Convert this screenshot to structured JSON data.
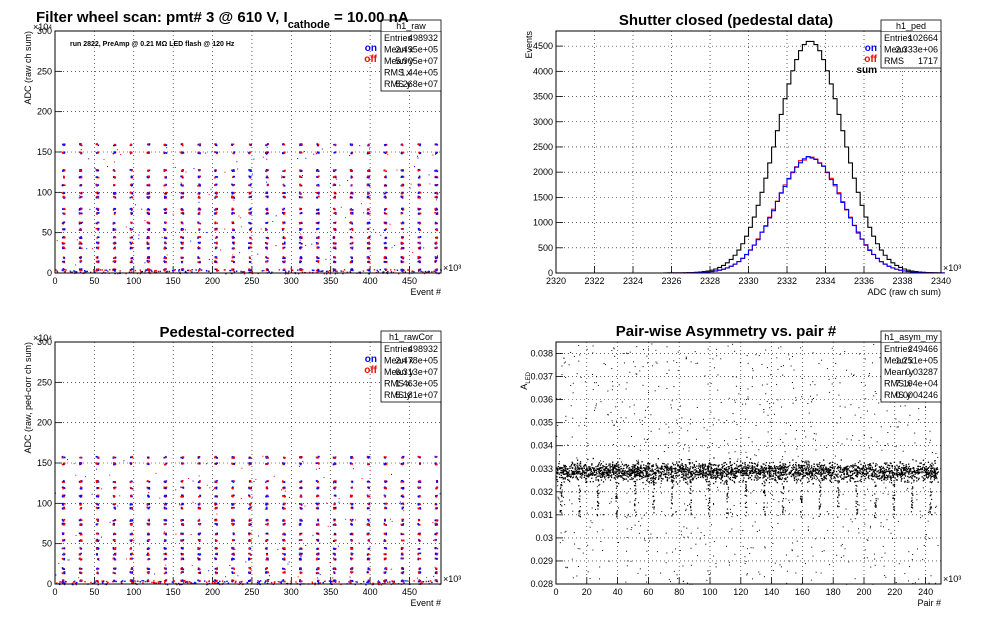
{
  "chart_data": [
    {
      "id": "raw",
      "type": "scatter",
      "title": "Filter wheel scan: pmt#   3 @   610 V, I",
      "title_sub": "cathode",
      "title_suffix": " = 10.00 nA",
      "annotation": "run 2822, PreAmp @ 0.21 MΩ  LED flash @  120 Hz",
      "xlabel": "Event #",
      "ylabel": "ADC (raw ch sum)",
      "xlim": [
        0,
        490
      ],
      "ylim": [
        0,
        300
      ],
      "x_exponent": "×10³",
      "y_exponent": "×10⁴",
      "xticks": [
        0,
        50,
        100,
        150,
        200,
        250,
        300,
        350,
        400,
        450
      ],
      "yticks": [
        0,
        50,
        100,
        150,
        200,
        250,
        300
      ],
      "grid": true,
      "legend": {
        "position": "top-right",
        "entries": [
          {
            "name": "on",
            "color": "#0000ff"
          },
          {
            "name": "off",
            "color": "#ff0000"
          }
        ]
      },
      "stats": {
        "name": "h1_raw",
        "rows": [
          [
            "Entries",
            "498932"
          ],
          [
            "Mean x",
            "2.495e+05"
          ],
          [
            "Mean y",
            "5.905e+07"
          ],
          [
            "RMS x",
            "1.44e+05"
          ],
          [
            "RMS y",
            "5.268e+07"
          ]
        ]
      },
      "levels": [
        160,
        150,
        128,
        120,
        110,
        100,
        95,
        80,
        75,
        63,
        55,
        45,
        38,
        32,
        20,
        15,
        5
      ],
      "block_period": 21.5,
      "block_offset": 10
    },
    {
      "id": "ped",
      "type": "line",
      "title": "Shutter closed (pedestal data)",
      "xlabel": "ADC (raw ch sum)",
      "ylabel": "Events",
      "xlim": [
        2320,
        2340
      ],
      "ylim": [
        0,
        4800
      ],
      "x_exponent": "×10³",
      "xticks": [
        2320,
        2322,
        2324,
        2326,
        2328,
        2330,
        2332,
        2334,
        2336,
        2338,
        2340
      ],
      "yticks": [
        0,
        500,
        1000,
        1500,
        2000,
        2500,
        3000,
        3500,
        4000,
        4500
      ],
      "grid": true,
      "legend": {
        "position": "top-right",
        "entries": [
          {
            "name": "on",
            "color": "#0000ff"
          },
          {
            "name": "off",
            "color": "#ff0000"
          },
          {
            "name": "sum",
            "color": "#000000"
          }
        ]
      },
      "stats": {
        "name": "h1_ped",
        "rows": [
          [
            "Entries",
            "102664"
          ],
          [
            "Mean",
            "2.333e+06"
          ],
          [
            "RMS",
            "1717"
          ]
        ]
      },
      "series": [
        {
          "name": "sum",
          "color": "#000000",
          "peak": 4600,
          "mean": 2333.2,
          "sigma": 1.72
        },
        {
          "name": "on",
          "color": "#0000ff",
          "peak": 2300,
          "mean": 2333.2,
          "sigma": 1.72
        },
        {
          "name": "off",
          "color": "#ff0000",
          "peak": 2300,
          "mean": 2333.2,
          "sigma": 1.72
        }
      ]
    },
    {
      "id": "rawcor",
      "type": "scatter",
      "title": "Pedestal-corrected",
      "xlabel": "Event #",
      "ylabel": "ADC (raw, ped-corr ch sum)",
      "xlim": [
        0,
        490
      ],
      "ylim": [
        0,
        300
      ],
      "x_exponent": "×10³",
      "y_exponent": "×10⁴",
      "xticks": [
        0,
        50,
        100,
        150,
        200,
        250,
        300,
        350,
        400,
        450
      ],
      "yticks": [
        0,
        50,
        100,
        150,
        200,
        250,
        300
      ],
      "grid": true,
      "legend": {
        "position": "top-right",
        "entries": [
          {
            "name": "on",
            "color": "#0000ff"
          },
          {
            "name": "off",
            "color": "#ff0000"
          }
        ]
      },
      "stats": {
        "name": "h1_rawCor",
        "rows": [
          [
            "Entries",
            "498932"
          ],
          [
            "Mean x",
            "2.478e+05"
          ],
          [
            "Mean y",
            "6.313e+07"
          ],
          [
            "RMS x",
            "1.463e+05"
          ],
          [
            "RMS y",
            "5.181e+07"
          ]
        ]
      },
      "levels": [
        158,
        150,
        128,
        120,
        110,
        100,
        95,
        80,
        75,
        63,
        55,
        45,
        38,
        32,
        20,
        15,
        5
      ],
      "block_period": 21.5,
      "block_offset": 10
    },
    {
      "id": "asym",
      "type": "scatter",
      "title": "Pair-wise Asymmetry vs. pair #",
      "xlabel": "Pair #",
      "ylabel": "A_LED",
      "xlim": [
        0,
        250
      ],
      "ylim": [
        0.028,
        0.0385
      ],
      "x_exponent": "×10³",
      "xticks": [
        0,
        20,
        40,
        60,
        80,
        100,
        120,
        140,
        160,
        180,
        200,
        220,
        240
      ],
      "yticks": [
        0.028,
        0.029,
        0.03,
        0.031,
        0.032,
        0.033,
        0.034,
        0.035,
        0.036,
        0.037,
        0.038
      ],
      "ytick_labels": [
        "0.028",
        "0.029",
        "0.03",
        "0.031",
        "0.032",
        "0.033",
        "0.034",
        "0.035",
        "0.036",
        "0.037",
        "0.038"
      ],
      "grid": true,
      "stats": {
        "name": "h1_asym_my",
        "rows": [
          [
            "Entries",
            "249466"
          ],
          [
            "Mean x",
            "1.251e+05"
          ],
          [
            "Mean y",
            "0.03287"
          ],
          [
            "RMS x",
            "7.194e+04"
          ],
          [
            "RMS y",
            "0.0004246"
          ]
        ]
      },
      "band_center": 0.0329,
      "band_halfwidth": 0.0004
    }
  ]
}
